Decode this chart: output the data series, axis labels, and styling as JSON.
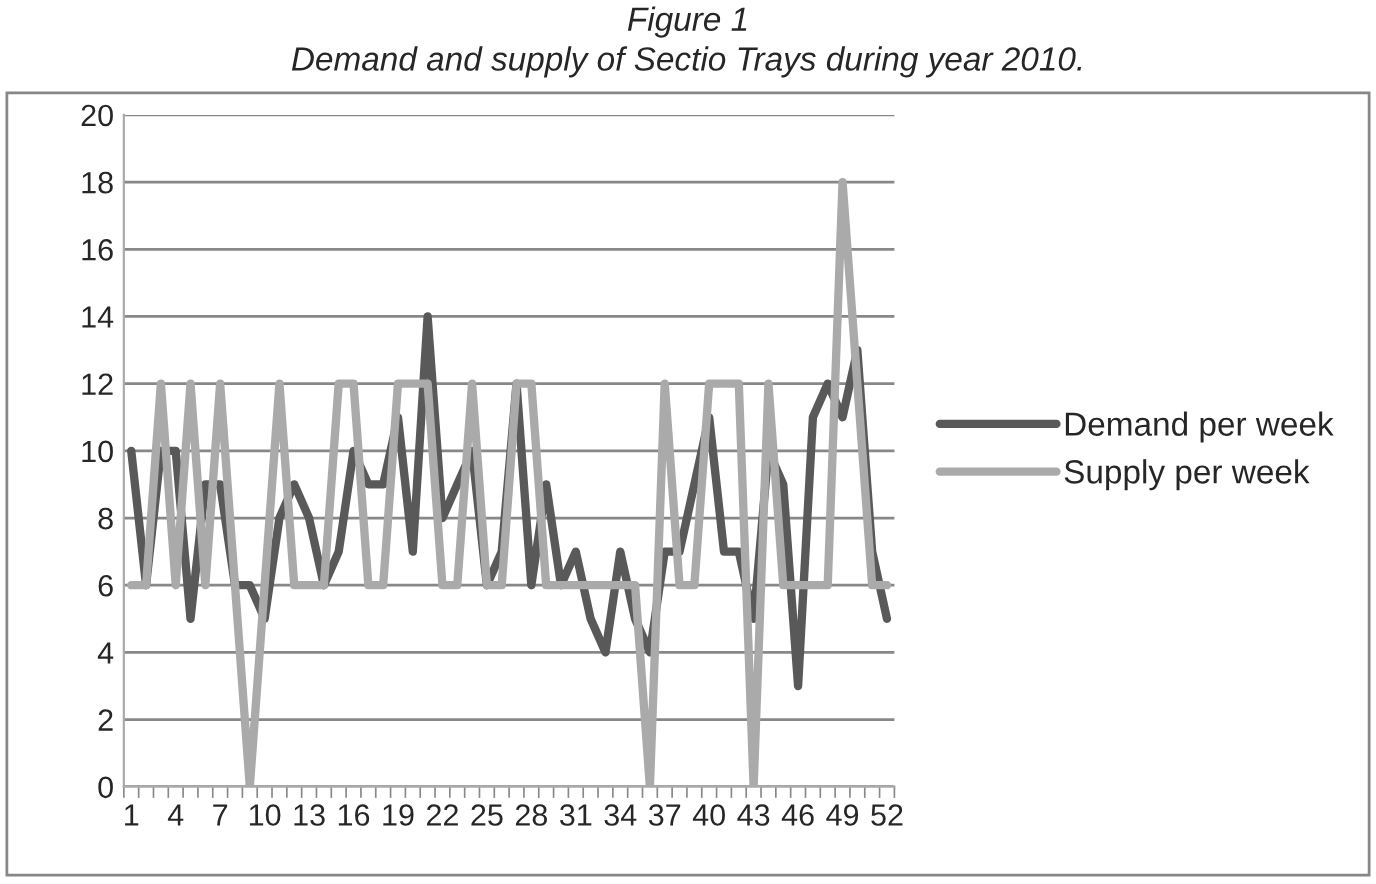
{
  "chart_data": {
    "type": "line",
    "title": "Figure 1",
    "subtitle": "Demand and supply of Sectio Trays during year 2010.",
    "categories": [
      "1",
      null,
      null,
      "4",
      null,
      null,
      "7",
      null,
      null,
      "10",
      null,
      null,
      "13",
      null,
      null,
      "16",
      null,
      null,
      "19",
      null,
      null,
      "22",
      null,
      null,
      "25",
      null,
      null,
      "28",
      null,
      null,
      "31",
      null,
      null,
      "34",
      null,
      null,
      "37",
      null,
      null,
      "40",
      null,
      null,
      "43",
      null,
      null,
      "46",
      null,
      null,
      "49",
      null,
      null,
      "52"
    ],
    "series": [
      {
        "name": "Demand per week",
        "color": "#595959",
        "values": [
          10,
          6,
          10,
          10,
          5,
          9,
          9,
          6,
          6,
          5,
          8,
          9,
          8,
          6,
          7,
          10,
          9,
          9,
          11,
          7,
          14,
          8,
          9,
          10,
          6,
          7,
          12,
          6,
          9,
          6,
          7,
          5,
          4,
          7,
          5,
          4,
          7,
          7,
          9,
          11,
          7,
          7,
          5,
          10,
          9,
          3,
          11,
          12,
          11,
          13,
          7,
          5
        ]
      },
      {
        "name": "Supply per week",
        "color": "#aaaaaa",
        "values": [
          6,
          6,
          12,
          6,
          12,
          6,
          12,
          6,
          0,
          6,
          12,
          6,
          6,
          6,
          12,
          12,
          6,
          6,
          12,
          12,
          12,
          6,
          6,
          12,
          6,
          6,
          12,
          12,
          6,
          6,
          6,
          6,
          6,
          6,
          6,
          0,
          12,
          6,
          6,
          12,
          12,
          12,
          0,
          12,
          6,
          6,
          6,
          6,
          18,
          12,
          6,
          6
        ]
      }
    ],
    "ylim": [
      0,
      20
    ],
    "yticks": [
      0,
      2,
      4,
      6,
      8,
      10,
      12,
      14,
      16,
      18,
      20
    ],
    "grid": "y",
    "legend": "right",
    "marker": "none",
    "line_style": "solid"
  }
}
